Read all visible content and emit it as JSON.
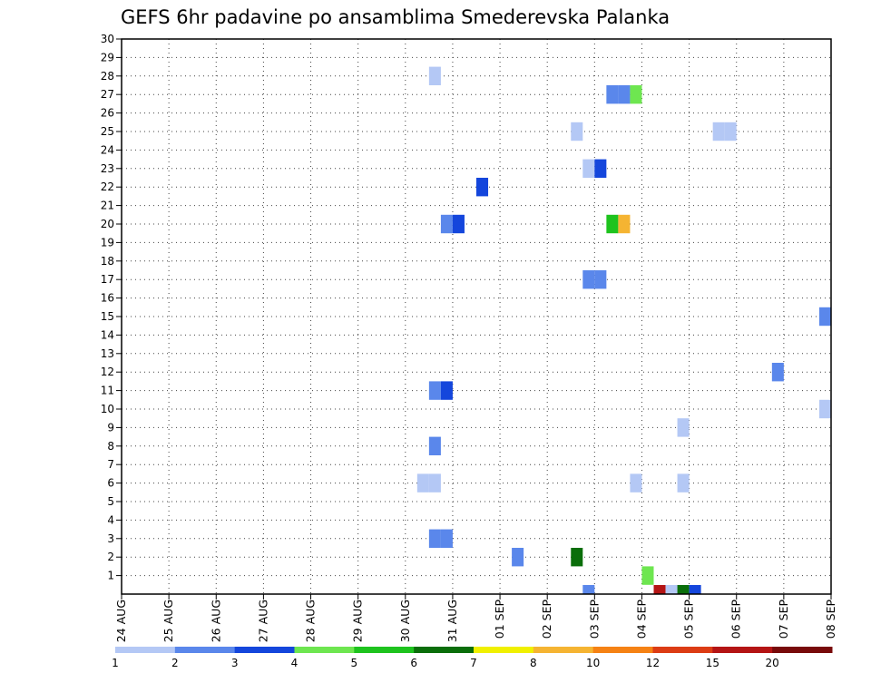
{
  "chart_data": {
    "type": "heatmap",
    "title": "GEFS 6hr padavine po ansamblima Smederevska Palanka",
    "xlabel": "",
    "ylabel": "",
    "x_ticks": [
      "24 AUG",
      "25 AUG",
      "26 AUG",
      "27 AUG",
      "28 AUG",
      "29 AUG",
      "30 AUG",
      "31 AUG",
      "01 SEP",
      "02 SEP",
      "03 SEP",
      "04 SEP",
      "05 SEP",
      "06 SEP",
      "07 SEP",
      "08 SEP"
    ],
    "x_range_days": [
      0,
      15
    ],
    "y_ticks": [
      1,
      2,
      3,
      4,
      5,
      6,
      7,
      8,
      9,
      10,
      11,
      12,
      13,
      14,
      15,
      16,
      17,
      18,
      19,
      20,
      21,
      22,
      23,
      24,
      25,
      26,
      27,
      28,
      29,
      30
    ],
    "y_range": [
      0,
      30
    ],
    "grid": true,
    "legend": {
      "placement": "bottom",
      "levels": [
        1,
        2,
        3,
        4,
        5,
        6,
        7,
        8,
        10,
        12,
        15,
        20
      ],
      "colors": [
        "#b4c8f5",
        "#5a87eb",
        "#1446dc",
        "#6ee650",
        "#1ec31e",
        "#0a6e0a",
        "#f0f000",
        "#f5b432",
        "#f58214",
        "#dc3c14",
        "#b41414",
        "#780a0a"
      ]
    },
    "cells": [
      {
        "day": 6.625,
        "member": 28,
        "level": 1
      },
      {
        "day": 6.625,
        "member": 11,
        "level": 2
      },
      {
        "day": 6.875,
        "member": 11,
        "level": 3
      },
      {
        "day": 6.625,
        "member": 8,
        "level": 2
      },
      {
        "day": 6.375,
        "member": 6,
        "level": 1
      },
      {
        "day": 6.625,
        "member": 6,
        "level": 1
      },
      {
        "day": 6.625,
        "member": 3,
        "level": 2
      },
      {
        "day": 6.875,
        "member": 3,
        "level": 2
      },
      {
        "day": 6.875,
        "member": 20,
        "level": 2
      },
      {
        "day": 7.125,
        "member": 20,
        "level": 3
      },
      {
        "day": 7.625,
        "member": 22,
        "level": 3
      },
      {
        "day": 8.375,
        "member": 2,
        "level": 2
      },
      {
        "day": 9.625,
        "member": 2,
        "level": 6
      },
      {
        "day": 9.625,
        "member": 25,
        "level": 1
      },
      {
        "day": 9.875,
        "member": 23,
        "level": 1
      },
      {
        "day": 10.125,
        "member": 23,
        "level": 3
      },
      {
        "day": 9.875,
        "member": 17,
        "level": 2
      },
      {
        "day": 10.125,
        "member": 17,
        "level": 2
      },
      {
        "day": 9.875,
        "member": 0,
        "level": 2
      },
      {
        "day": 10.375,
        "member": 27,
        "level": 2
      },
      {
        "day": 10.625,
        "member": 27,
        "level": 2
      },
      {
        "day": 10.875,
        "member": 27,
        "level": 4
      },
      {
        "day": 10.375,
        "member": 20,
        "level": 5
      },
      {
        "day": 10.625,
        "member": 20,
        "level": 8
      },
      {
        "day": 10.875,
        "member": 6,
        "level": 1
      },
      {
        "day": 11.125,
        "member": 1,
        "level": 4
      },
      {
        "day": 11.375,
        "member": 0,
        "level": 11
      },
      {
        "day": 11.625,
        "member": 0,
        "level": 1
      },
      {
        "day": 11.875,
        "member": 0,
        "level": 6
      },
      {
        "day": 12.125,
        "member": 0,
        "level": 3
      },
      {
        "day": 11.875,
        "member": 9,
        "level": 1
      },
      {
        "day": 11.875,
        "member": 6,
        "level": 1
      },
      {
        "day": 12.625,
        "member": 25,
        "level": 1
      },
      {
        "day": 12.875,
        "member": 25,
        "level": 1
      },
      {
        "day": 13.875,
        "member": 12,
        "level": 2
      },
      {
        "day": 14.875,
        "member": 15,
        "level": 2
      },
      {
        "day": 14.875,
        "member": 10,
        "level": 1
      }
    ]
  }
}
